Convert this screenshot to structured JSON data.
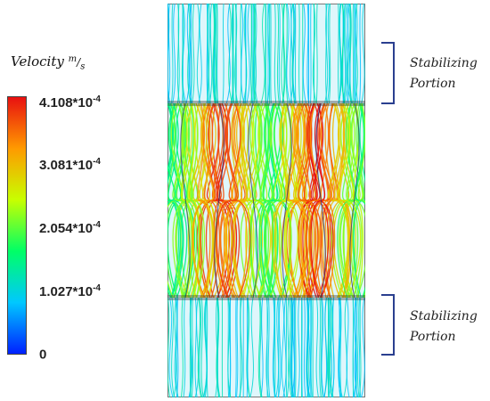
{
  "legend": {
    "title": "Velocity",
    "unit_num": "m",
    "unit_den": "s",
    "ticks": [
      "4.108*10-4",
      "3.081*10-4",
      "2.054*10-4",
      "1.027*10-4",
      "0"
    ],
    "colors": [
      "#0020ff",
      "#00c8ff",
      "#00ff66",
      "#c8ff00",
      "#ff9a00",
      "#e81010"
    ]
  },
  "labels": {
    "top_line1": "Stabilizing",
    "top_line2": "Portion",
    "bottom_line1": "Stabilizing",
    "bottom_line2": "Portion"
  },
  "plot": {
    "background_color": "#dff6fb",
    "stabilizing_color": "#3fd0ea",
    "mesh_color": "#333333",
    "brace_color": "#2a3f8f"
  }
}
